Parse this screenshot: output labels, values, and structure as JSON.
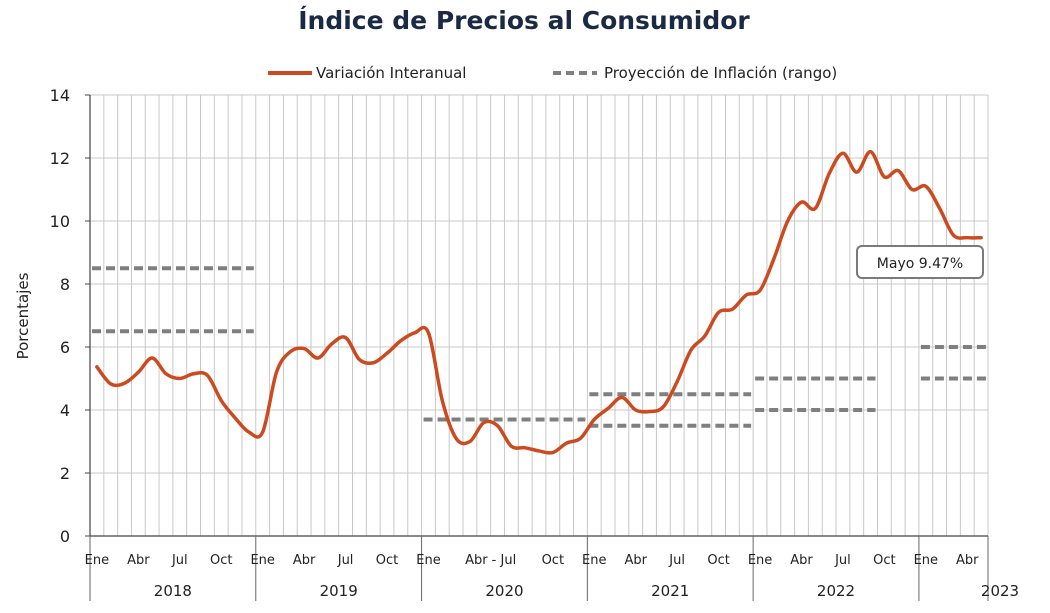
{
  "chart_data": {
    "type": "line",
    "title": "Índice de Precios al Consumidor",
    "ylabel": "Porcentajes",
    "ylim": [
      0,
      14
    ],
    "yticks": [
      "0",
      "2",
      "4",
      "6",
      "8",
      "10",
      "12",
      "14"
    ],
    "grid": true,
    "legend_position": "top",
    "legend": [
      {
        "label": "Variación Interanual",
        "style": "solid",
        "color": "#cc4a1f"
      },
      {
        "label": "Proyección de Inflación (rango)",
        "style": "dashed",
        "color": "#7f7f7f"
      }
    ],
    "month_labels": [
      {
        "month_index": 0,
        "text": "Ene"
      },
      {
        "month_index": 3,
        "text": "Abr"
      },
      {
        "month_index": 6,
        "text": "Jul"
      },
      {
        "month_index": 9,
        "text": "Oct"
      },
      {
        "month_index": 12,
        "text": "Ene"
      },
      {
        "month_index": 15,
        "text": "Abr"
      },
      {
        "month_index": 18,
        "text": "Jul"
      },
      {
        "month_index": 21,
        "text": "Oct"
      },
      {
        "month_index": 24,
        "text": "Ene"
      },
      {
        "month_index": 28.5,
        "text": "Abr - Jul"
      },
      {
        "month_index": 33,
        "text": "Oct"
      },
      {
        "month_index": 36,
        "text": "Ene"
      },
      {
        "month_index": 39,
        "text": "Abr"
      },
      {
        "month_index": 42,
        "text": "Jul"
      },
      {
        "month_index": 45,
        "text": "Oct"
      },
      {
        "month_index": 48,
        "text": "Ene"
      },
      {
        "month_index": 51,
        "text": "Abr"
      },
      {
        "month_index": 54,
        "text": "Jul"
      },
      {
        "month_index": 57,
        "text": "Oct"
      },
      {
        "month_index": 60,
        "text": "Ene"
      },
      {
        "month_index": 63,
        "text": "Abr"
      }
    ],
    "years": [
      {
        "label": "2018",
        "start": 0,
        "end": 12
      },
      {
        "label": "2019",
        "start": 12,
        "end": 24
      },
      {
        "label": "2020",
        "start": 24,
        "end": 36
      },
      {
        "label": "2021",
        "start": 36,
        "end": 48
      },
      {
        "label": "2022",
        "start": 48,
        "end": 60
      },
      {
        "label": "2023",
        "start": 60,
        "end": 65
      }
    ],
    "series": [
      {
        "name": "Variación Interanual",
        "color": "#cc4a1f",
        "x": [
          "2018-01",
          "2018-02",
          "2018-03",
          "2018-04",
          "2018-05",
          "2018-06",
          "2018-07",
          "2018-08",
          "2018-09",
          "2018-10",
          "2018-11",
          "2018-12",
          "2019-01",
          "2019-02",
          "2019-03",
          "2019-04",
          "2019-05",
          "2019-06",
          "2019-07",
          "2019-08",
          "2019-09",
          "2019-10",
          "2019-11",
          "2019-12",
          "2020-01",
          "2020-02",
          "2020-03",
          "2020-04",
          "2020-05",
          "2020-06",
          "2020-07",
          "2020-08",
          "2020-09",
          "2020-10",
          "2020-11",
          "2020-12",
          "2021-01",
          "2021-02",
          "2021-03",
          "2021-04",
          "2021-05",
          "2021-06",
          "2021-07",
          "2021-08",
          "2021-09",
          "2021-10",
          "2021-11",
          "2021-12",
          "2022-01",
          "2022-02",
          "2022-03",
          "2022-04",
          "2022-05",
          "2022-06",
          "2022-07",
          "2022-08",
          "2022-09",
          "2022-10",
          "2022-11",
          "2022-12",
          "2023-01",
          "2023-02",
          "2023-03",
          "2023-04",
          "2023-05"
        ],
        "values": [
          5.37,
          4.83,
          4.85,
          5.2,
          5.65,
          5.15,
          5.0,
          5.15,
          5.1,
          4.3,
          3.75,
          3.3,
          3.3,
          5.2,
          5.85,
          5.95,
          5.65,
          6.1,
          6.3,
          5.6,
          5.5,
          5.8,
          6.2,
          6.45,
          6.45,
          4.3,
          3.1,
          3.0,
          3.6,
          3.5,
          2.85,
          2.8,
          2.7,
          2.65,
          2.95,
          3.1,
          3.7,
          4.05,
          4.4,
          4.0,
          3.95,
          4.1,
          4.9,
          5.9,
          6.35,
          7.1,
          7.2,
          7.65,
          7.8,
          8.8,
          10.0,
          10.6,
          10.4,
          11.5,
          12.15,
          11.55,
          12.2,
          11.4,
          11.6,
          11.0,
          11.1,
          10.4,
          9.55,
          9.47,
          9.47
        ]
      }
    ],
    "projection_ranges": [
      {
        "start": "2018-01",
        "end": "2018-12",
        "low": 6.5,
        "high": 8.5
      },
      {
        "start": "2020-01",
        "end": "2020-12",
        "low": 3.7,
        "high": 3.7
      },
      {
        "start": "2021-01",
        "end": "2021-12",
        "low": 3.5,
        "high": 4.5
      },
      {
        "start": "2022-01",
        "end": "2022-09",
        "low": 4.0,
        "high": 5.0
      },
      {
        "start": "2023-01",
        "end": "2023-05",
        "low": 5.0,
        "high": 6.0
      }
    ],
    "annotation": {
      "text": "Mayo 9.47%",
      "x": "2023-05",
      "value": 9.47
    }
  }
}
